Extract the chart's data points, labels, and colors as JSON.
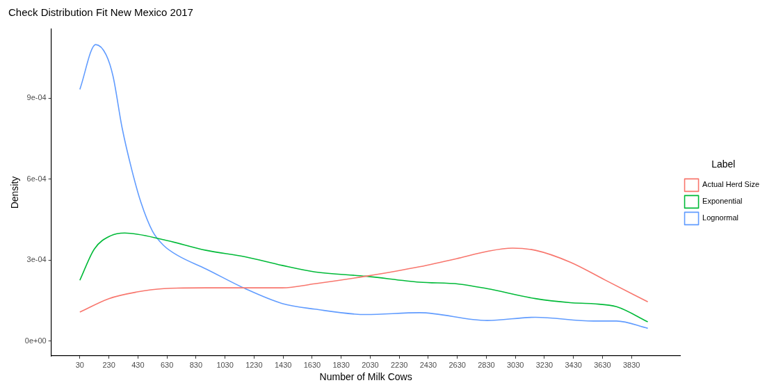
{
  "chart_data": {
    "type": "line",
    "title": "Check Distribution Fit New Mexico 2017",
    "xlabel": "Number of Milk Cows",
    "ylabel": "Density",
    "legend_title": "Label",
    "legend": "right",
    "grid": false,
    "marker": "none",
    "line_style": "solid",
    "xlim": [
      -167,
      4167
    ],
    "xticks": [
      30,
      230,
      430,
      630,
      830,
      1030,
      1230,
      1430,
      1630,
      1830,
      2030,
      2230,
      2430,
      2630,
      2830,
      3030,
      3230,
      3430,
      3630,
      3830
    ],
    "ylim": [
      -5.5e-05,
      0.001155
    ],
    "yticks": [
      {
        "value": 0,
        "label": "0e+00"
      },
      {
        "value": 0.0003,
        "label": "3e-04"
      },
      {
        "value": 0.0006,
        "label": "6e-04"
      },
      {
        "value": 0.0009,
        "label": "9e-04"
      }
    ],
    "series": [
      {
        "name": "Actual Herd Size",
        "color": "#f8766d",
        "x": [
          30,
          230,
          417,
          609,
          899,
          1424,
          1649,
          2001,
          2370,
          2641,
          2835,
          3011,
          3168,
          3408,
          3648,
          3942
        ],
        "values": [
          0.000107,
          0.000157,
          0.000181,
          0.000194,
          0.000197,
          0.000197,
          0.000212,
          0.00024,
          0.000275,
          0.000307,
          0.000332,
          0.000344,
          0.000336,
          0.000292,
          0.000226,
          0.000145
        ]
      },
      {
        "name": "Exponential",
        "color": "#00ba38",
        "x": [
          30,
          130,
          243,
          339,
          609,
          899,
          1169,
          1424,
          1649,
          2001,
          2370,
          2641,
          2835,
          3168,
          3408,
          3567,
          3727,
          3942
        ],
        "values": [
          0.000225,
          0.000341,
          0.00039,
          0.0004,
          0.000375,
          0.000336,
          0.000312,
          0.00028,
          0.000256,
          0.00024,
          0.000218,
          0.000211,
          0.000194,
          0.000157,
          0.000142,
          0.000138,
          0.000127,
          7.1e-05
        ]
      },
      {
        "name": "Lognormal",
        "color": "#619cff",
        "x": [
          30,
          139,
          211,
          259,
          321,
          387,
          451,
          531,
          609,
          707,
          899,
          1169,
          1424,
          1649,
          2001,
          2370,
          2835,
          3168,
          3567,
          3727,
          3942
        ],
        "values": [
          0.000932,
          0.001098,
          0.00106,
          0.00098,
          0.00079,
          0.000636,
          0.000513,
          0.000406,
          0.000353,
          0.000316,
          0.000267,
          0.000194,
          0.000139,
          0.000118,
          9.8e-05,
          0.000105,
          7.6e-05,
          8.8e-05,
          7.4e-05,
          7.4e-05,
          4.7e-05
        ]
      }
    ]
  }
}
